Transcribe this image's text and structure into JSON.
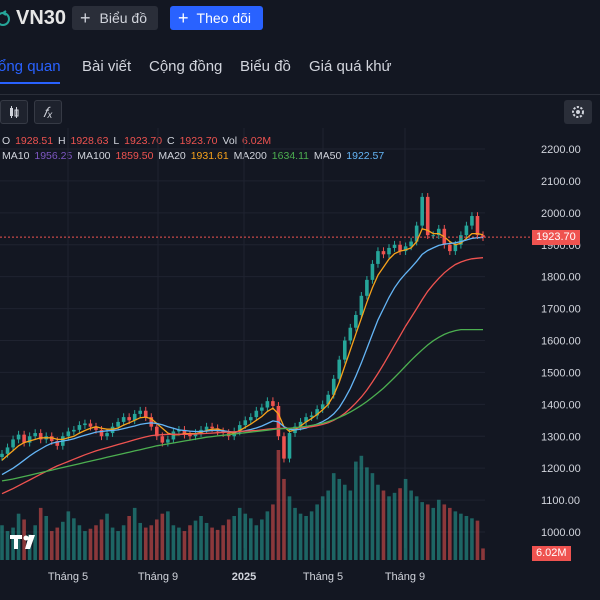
{
  "header": {
    "ticker": "VN30",
    "chart_button": "Biểu đồ",
    "follow_button": "Theo dõi"
  },
  "tabs": [
    {
      "label": "ổng quan",
      "active": true
    },
    {
      "label": "Bài viết",
      "active": false
    },
    {
      "label": "Cộng đồng",
      "active": false
    },
    {
      "label": "Biểu đồ",
      "active": false
    },
    {
      "label": "Giá quá khứ",
      "active": false
    }
  ],
  "toolbar": {
    "indicator_icon": "fx-icon",
    "candle_icon": "candles-icon",
    "settings_icon": "gear-icon"
  },
  "legend": {
    "ohlc": {
      "o_label": "O",
      "o": "1928.51",
      "h_label": "H",
      "h": "1928.63",
      "l_label": "L",
      "l": "1923.70",
      "c_label": "C",
      "c": "1923.70",
      "vol_label": "Vol",
      "vol": "6.02M"
    },
    "ma": [
      {
        "label": "MA10",
        "value": "1956.25",
        "color": "#7e57c2"
      },
      {
        "label": "MA100",
        "value": "1859.50",
        "color": "#ef5350"
      },
      {
        "label": "MA20",
        "value": "1931.61",
        "color": "#f7a21b"
      },
      {
        "label": "MA200",
        "value": "1634.11",
        "color": "#4caf50"
      },
      {
        "label": "MA50",
        "value": "1922.57",
        "color": "#64b5f6"
      }
    ]
  },
  "colors": {
    "up": "#26a69a",
    "down": "#ef5350",
    "accent": "#2962ff",
    "bg": "#131722"
  },
  "price_tag": "1923.70",
  "volume_tag": "6.02M",
  "chart_data": {
    "type": "line",
    "y_ticks": [
      "2200.00",
      "2100.00",
      "2000.00",
      "1900.00",
      "1800.00",
      "1700.00",
      "1600.00",
      "1500.00",
      "1400.00",
      "1300.00",
      "1200.00",
      "1100.00",
      "1000.00"
    ],
    "x_labels": [
      "Tháng 5",
      "Tháng 9",
      "2025",
      "Tháng 5",
      "Tháng 9"
    ],
    "ylim": [
      950,
      2250
    ],
    "last_price": 1923.7,
    "series": [
      {
        "name": "price",
        "color": "#26a69a",
        "values": [
          1245,
          1265,
          1290,
          1305,
          1280,
          1300,
          1310,
          1290,
          1300,
          1285,
          1270,
          1300,
          1315,
          1320,
          1335,
          1340,
          1330,
          1320,
          1300,
          1310,
          1330,
          1345,
          1360,
          1350,
          1370,
          1380,
          1360,
          1330,
          1300,
          1280,
          1290,
          1315,
          1320,
          1305,
          1300,
          1310,
          1320,
          1330,
          1325,
          1315,
          1310,
          1300,
          1315,
          1335,
          1350,
          1360,
          1380,
          1390,
          1410,
          1395,
          1300,
          1230,
          1310,
          1330,
          1345,
          1360,
          1365,
          1385,
          1400,
          1430,
          1480,
          1540,
          1600,
          1640,
          1680,
          1740,
          1790,
          1840,
          1880,
          1870,
          1890,
          1900,
          1880,
          1895,
          1910,
          1960,
          2050,
          1930,
          1930,
          1950,
          1900,
          1880,
          1900,
          1930,
          1960,
          1990,
          1930,
          1923.7
        ]
      },
      {
        "name": "MA20",
        "color": "#f7a21b",
        "values": [
          1225,
          1240,
          1255,
          1270,
          1280,
          1285,
          1290,
          1295,
          1295,
          1295,
          1290,
          1290,
          1295,
          1300,
          1310,
          1318,
          1325,
          1330,
          1325,
          1322,
          1322,
          1326,
          1335,
          1342,
          1350,
          1358,
          1360,
          1355,
          1340,
          1325,
          1310,
          1305,
          1305,
          1308,
          1308,
          1308,
          1312,
          1318,
          1322,
          1322,
          1318,
          1312,
          1310,
          1318,
          1328,
          1338,
          1350,
          1362,
          1378,
          1388,
          1370,
          1330,
          1315,
          1320,
          1332,
          1345,
          1356,
          1368,
          1383,
          1400,
          1428,
          1470,
          1520,
          1570,
          1620,
          1670,
          1720,
          1765,
          1805,
          1830,
          1855,
          1872,
          1880,
          1884,
          1890,
          1910,
          1950,
          1945,
          1935,
          1935,
          1925,
          1910,
          1900,
          1905,
          1920,
          1935,
          1935,
          1931.6
        ]
      },
      {
        "name": "MA50",
        "color": "#64b5f6",
        "values": [
          1180,
          1190,
          1200,
          1212,
          1225,
          1238,
          1250,
          1260,
          1270,
          1278,
          1282,
          1285,
          1288,
          1292,
          1298,
          1303,
          1308,
          1313,
          1315,
          1317,
          1318,
          1320,
          1324,
          1328,
          1332,
          1337,
          1340,
          1342,
          1340,
          1336,
          1330,
          1325,
          1320,
          1318,
          1316,
          1315,
          1315,
          1316,
          1318,
          1318,
          1317,
          1315,
          1313,
          1314,
          1317,
          1321,
          1326,
          1332,
          1340,
          1348,
          1345,
          1330,
          1322,
          1320,
          1322,
          1326,
          1332,
          1338,
          1346,
          1356,
          1370,
          1390,
          1418,
          1450,
          1488,
          1530,
          1575,
          1620,
          1665,
          1700,
          1735,
          1765,
          1790,
          1810,
          1828,
          1848,
          1870,
          1882,
          1890,
          1898,
          1902,
          1904,
          1906,
          1910,
          1915,
          1920,
          1922,
          1922.6
        ]
      },
      {
        "name": "MA100",
        "color": "#ef5350",
        "values": [
          1120,
          1128,
          1136,
          1145,
          1154,
          1163,
          1172,
          1181,
          1190,
          1199,
          1207,
          1214,
          1221,
          1228,
          1235,
          1242,
          1248,
          1254,
          1259,
          1264,
          1269,
          1274,
          1279,
          1284,
          1289,
          1294,
          1298,
          1302,
          1304,
          1305,
          1306,
          1306,
          1306,
          1306,
          1306,
          1307,
          1308,
          1309,
          1310,
          1311,
          1312,
          1313,
          1314,
          1315,
          1316,
          1317,
          1318,
          1320,
          1322,
          1324,
          1325,
          1325,
          1325,
          1326,
          1327,
          1328,
          1330,
          1333,
          1337,
          1342,
          1350,
          1360,
          1372,
          1387,
          1404,
          1423,
          1445,
          1470,
          1497,
          1525,
          1555,
          1585,
          1615,
          1645,
          1672,
          1700,
          1728,
          1754,
          1775,
          1795,
          1812,
          1826,
          1838,
          1846,
          1852,
          1856,
          1858,
          1859.5
        ]
      },
      {
        "name": "MA200",
        "color": "#4caf50",
        "values": [
          1160,
          1163,
          1166,
          1170,
          1174,
          1178,
          1182,
          1186,
          1190,
          1194,
          1198,
          1202,
          1206,
          1210,
          1214,
          1218,
          1222,
          1226,
          1230,
          1234,
          1238,
          1242,
          1246,
          1250,
          1254,
          1258,
          1262,
          1266,
          1270,
          1273,
          1276,
          1279,
          1282,
          1285,
          1288,
          1291,
          1294,
          1297,
          1299,
          1301,
          1303,
          1305,
          1307,
          1309,
          1311,
          1313,
          1315,
          1317,
          1319,
          1321,
          1323,
          1324,
          1325,
          1327,
          1329,
          1331,
          1334,
          1337,
          1341,
          1346,
          1352,
          1359,
          1367,
          1376,
          1386,
          1397,
          1409,
          1422,
          1436,
          1451,
          1467,
          1484,
          1502,
          1520,
          1538,
          1555,
          1571,
          1586,
          1599,
          1610,
          1619,
          1626,
          1631,
          1634.1,
          1634.1,
          1634.1,
          1634.1,
          1634.1
        ]
      }
    ],
    "volume": [
      30,
      25,
      28,
      40,
      35,
      22,
      30,
      45,
      38,
      25,
      28,
      33,
      42,
      36,
      30,
      25,
      27,
      30,
      35,
      40,
      28,
      25,
      30,
      38,
      45,
      32,
      28,
      30,
      35,
      40,
      42,
      30,
      28,
      25,
      30,
      34,
      38,
      32,
      28,
      26,
      30,
      35,
      38,
      45,
      40,
      36,
      30,
      35,
      42,
      48,
      95,
      70,
      55,
      45,
      40,
      38,
      42,
      48,
      55,
      60,
      75,
      70,
      65,
      60,
      85,
      90,
      80,
      75,
      65,
      60,
      55,
      58,
      62,
      70,
      60,
      55,
      50,
      48,
      45,
      52,
      48,
      45,
      42,
      40,
      38,
      36,
      34,
      10
    ]
  }
}
